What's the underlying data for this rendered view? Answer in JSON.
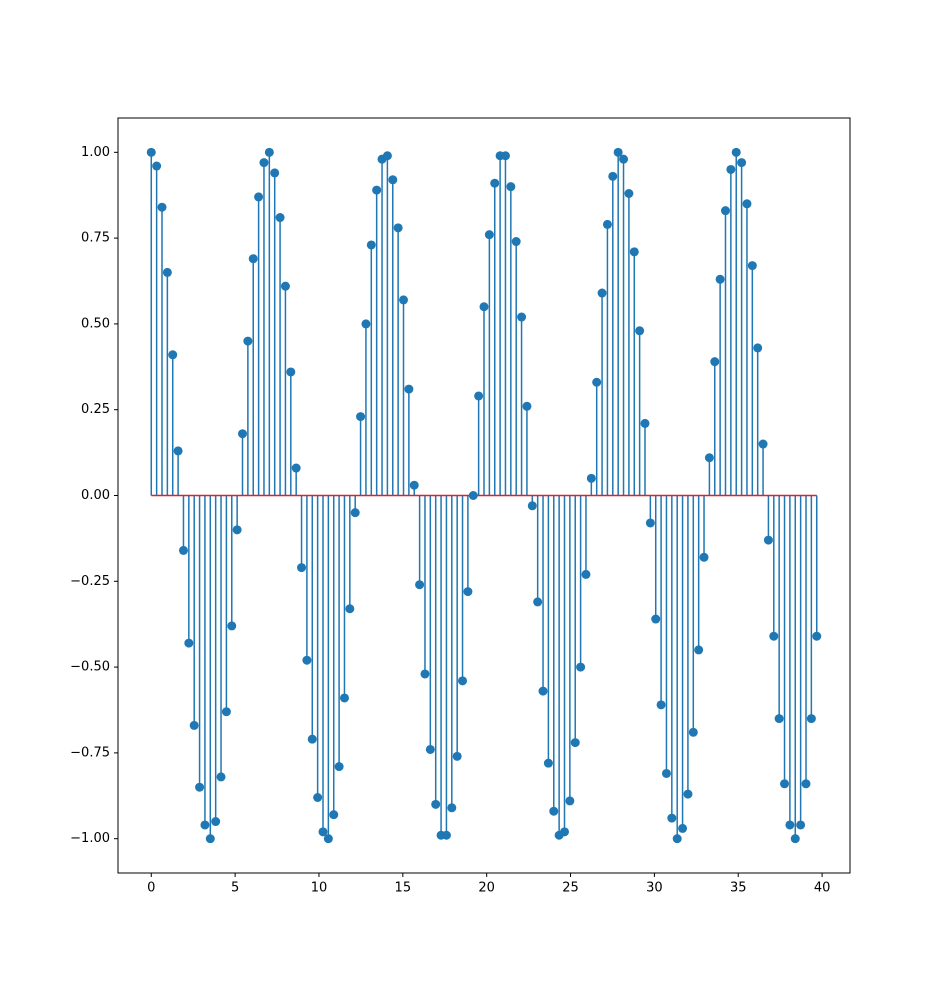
{
  "chart_data": {
    "type": "stem",
    "x": [
      0,
      0.32,
      0.64,
      0.96,
      1.28,
      1.6,
      1.92,
      2.24,
      2.56,
      2.88,
      3.2,
      3.52,
      3.84,
      4.16,
      4.48,
      4.8,
      5.12,
      5.44,
      5.76,
      6.08,
      6.4,
      6.72,
      7.04,
      7.36,
      7.68,
      8,
      8.32,
      8.64,
      8.96,
      9.28,
      9.6,
      9.92,
      10.24,
      10.56,
      10.88,
      11.2,
      11.52,
      11.84,
      12.16,
      12.48,
      12.8,
      13.12,
      13.44,
      13.76,
      14.08,
      14.4,
      14.72,
      15.04,
      15.36,
      15.68,
      16,
      16.32,
      16.64,
      16.96,
      17.28,
      17.6,
      17.92,
      18.24,
      18.56,
      18.88,
      19.2,
      19.52,
      19.84,
      20.16,
      20.48,
      20.8,
      21.12,
      21.44,
      21.76,
      22.08,
      22.4,
      22.72,
      23.04,
      23.36,
      23.68,
      24,
      24.32,
      24.64,
      24.96,
      25.28,
      25.6,
      25.92,
      26.24,
      26.56,
      26.88,
      27.2,
      27.52,
      27.84,
      28.16,
      28.48,
      28.8,
      29.12,
      29.44,
      29.76,
      30.08,
      30.4,
      30.72,
      31.04,
      31.36,
      31.68,
      32,
      32.32,
      32.64,
      32.96,
      33.28,
      33.6,
      33.92,
      34.24,
      34.56,
      34.88,
      35.2,
      35.52,
      35.84,
      36.16,
      36.48,
      36.8,
      37.12,
      37.44,
      37.76,
      38.08,
      38.4,
      38.72,
      39.04,
      39.36,
      39.68
    ],
    "values": [
      1,
      0.96,
      0.84,
      0.65,
      0.41,
      0.13,
      -0.16,
      -0.43,
      -0.67,
      -0.85,
      -0.96,
      -1,
      -0.95,
      -0.82,
      -0.63,
      -0.38,
      -0.1,
      0.18,
      0.45,
      0.69,
      0.87,
      0.97,
      1,
      0.94,
      0.81,
      0.61,
      0.36,
      0.08,
      -0.21,
      -0.48,
      -0.71,
      -0.88,
      -0.98,
      -1,
      -0.93,
      -0.79,
      -0.59,
      -0.33,
      -0.05,
      0.23,
      0.5,
      0.73,
      0.89,
      0.98,
      0.99,
      0.92,
      0.78,
      0.57,
      0.31,
      0.03,
      -0.26,
      -0.52,
      -0.74,
      -0.9,
      -0.99,
      -0.99,
      -0.91,
      -0.76,
      -0.54,
      -0.28,
      0,
      0.29,
      0.55,
      0.76,
      0.91,
      0.99,
      0.99,
      0.9,
      0.74,
      0.52,
      0.26,
      -0.03,
      -0.31,
      -0.57,
      -0.78,
      -0.92,
      -0.99,
      -0.98,
      -0.89,
      -0.72,
      -0.5,
      -0.23,
      0.05,
      0.33,
      0.59,
      0.79,
      0.93,
      1,
      0.98,
      0.88,
      0.71,
      0.48,
      0.21,
      -0.08,
      -0.36,
      -0.61,
      -0.81,
      -0.94,
      -1,
      -0.97,
      -0.87,
      -0.69,
      -0.45,
      -0.18,
      0.11,
      0.39,
      0.63,
      0.83,
      0.95,
      1,
      0.97,
      0.85,
      0.67,
      0.43,
      0.15,
      -0.13,
      -0.41,
      -0.65,
      -0.84,
      -0.96,
      -1,
      -0.96,
      -0.84,
      -0.65,
      -0.41
    ],
    "color": "#1f77b4",
    "baseline_color": "#d62728",
    "xlim": [
      -1.984,
      41.664
    ],
    "ylim": [
      -1.1,
      1.1
    ],
    "xticks": [
      0,
      5,
      10,
      15,
      20,
      25,
      30,
      35,
      40
    ],
    "yticks": [
      {
        "value": -1,
        "label": "−1.00"
      },
      {
        "value": -0.75,
        "label": "−0.75"
      },
      {
        "value": -0.5,
        "label": "−0.50"
      },
      {
        "value": -0.25,
        "label": "−0.25"
      },
      {
        "value": 0,
        "label": "0.00"
      },
      {
        "value": 0.25,
        "label": "0.25"
      },
      {
        "value": 0.5,
        "label": "0.50"
      },
      {
        "value": 0.75,
        "label": "0.75"
      },
      {
        "value": 1,
        "label": "1.00"
      }
    ]
  }
}
